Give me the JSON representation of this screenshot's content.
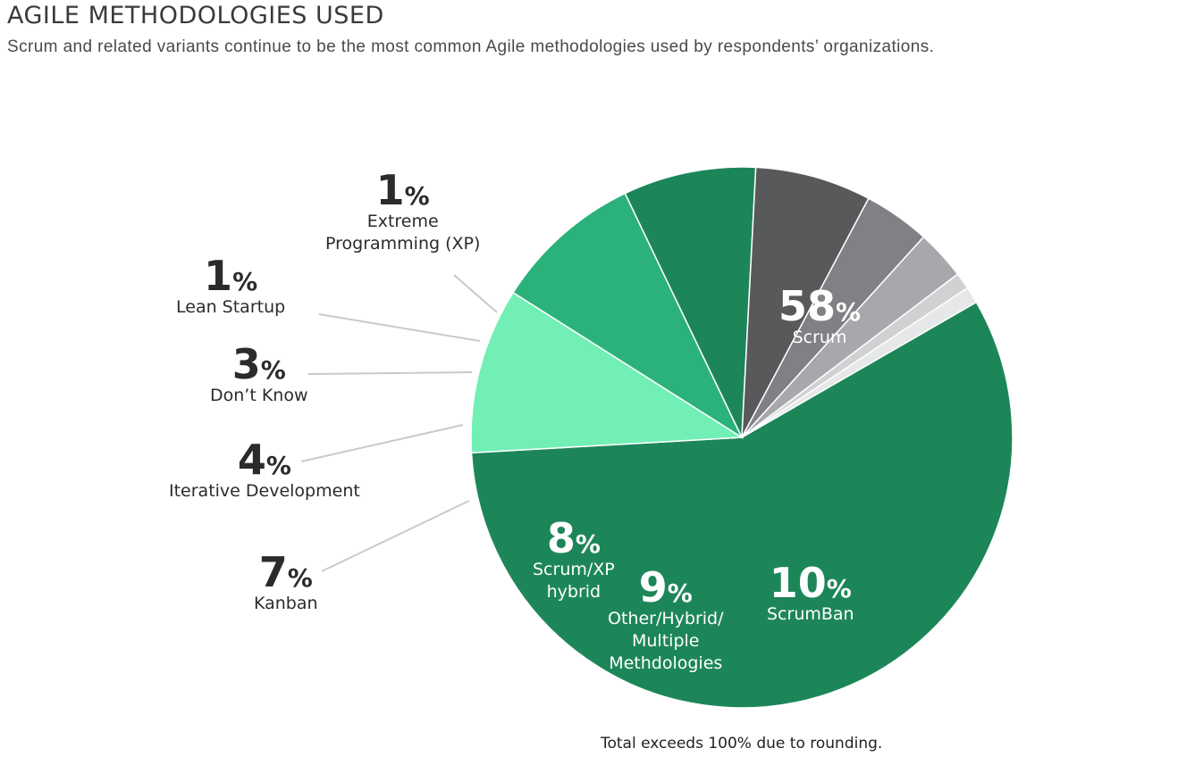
{
  "title": "AGILE METHODOLOGIES USED",
  "subtitle": "Scrum and related variants continue to be the most common Agile methodologies used by respondents’ organizations.",
  "footnote": "Total exceeds 100% due to rounding.",
  "chart_data": {
    "type": "pie",
    "start_angle_deg": -30,
    "direction": "clockwise",
    "slices": [
      {
        "label": "Scrum",
        "value": 58,
        "value_text": "58",
        "color": "#1d8659"
      },
      {
        "label": "ScrumBan",
        "value": 10,
        "value_text": "10",
        "color": "#72efb5"
      },
      {
        "label": "Other/Hybrid/\nMultiple\nMethdologies",
        "value": 9,
        "value_text": "9",
        "color": "#2bb27b"
      },
      {
        "label": "Scrum/XP\nhybrid",
        "value": 8,
        "value_text": "8",
        "color": "#1d8659"
      },
      {
        "label": "Kanban",
        "value": 7,
        "value_text": "7",
        "color": "#58595b"
      },
      {
        "label": "Iterative Development",
        "value": 4,
        "value_text": "4",
        "color": "#808184"
      },
      {
        "label": "Don’t Know",
        "value": 3,
        "value_text": "3",
        "color": "#a7a8ab"
      },
      {
        "label": "Lean Startup",
        "value": 1,
        "value_text": "1",
        "color": "#d0d1d2"
      },
      {
        "label": "Extreme\nProgramming (XP)",
        "value": 1,
        "value_text": "1",
        "color": "#e6e7e8"
      }
    ],
    "percent_symbol": "%"
  }
}
